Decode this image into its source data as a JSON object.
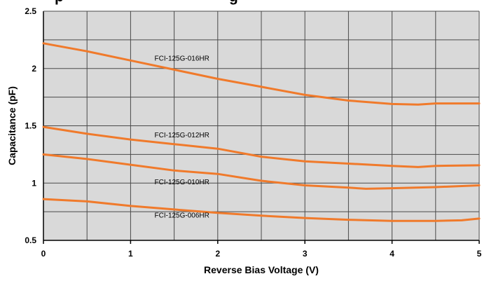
{
  "chart_data": {
    "type": "line",
    "title_fragment": "...p... ...g...",
    "xlabel": "Reverse Bias Voltage (V)",
    "ylabel": "Capacitance (pF)",
    "xlim": [
      0,
      5
    ],
    "ylim": [
      0.5,
      2.5
    ],
    "x_major_ticks": [
      0,
      1,
      2,
      3,
      4,
      5
    ],
    "x_tick_labels": [
      "0",
      "1",
      "2",
      "3",
      "4",
      "5"
    ],
    "x_minor_ticks": [
      0.5,
      1.5,
      2.5,
      3.5,
      4.5
    ],
    "y_major_ticks": [
      0.5,
      1,
      1.5,
      2,
      2.5
    ],
    "y_tick_labels": [
      "0.5",
      "1",
      "1.5",
      "2",
      "2.5"
    ],
    "y_minor_ticks": [
      0.75,
      1.25,
      1.75,
      2.25
    ],
    "grid": true,
    "line_color": "#f07a2b",
    "background_color": "#d9d9d9",
    "series": [
      {
        "name": "FCI-125G-016HR",
        "label_at": [
          1.25,
          2.07
        ],
        "x": [
          0,
          0.5,
          1,
          1.5,
          2,
          2.5,
          3,
          3.5,
          4,
          4.3,
          4.5,
          5
        ],
        "values": [
          2.22,
          2.15,
          2.07,
          1.99,
          1.91,
          1.84,
          1.77,
          1.72,
          1.69,
          1.685,
          1.695,
          1.695
        ]
      },
      {
        "name": "FCI-125G-012HR",
        "label_at": [
          1.25,
          1.4
        ],
        "x": [
          0,
          0.5,
          1,
          1.5,
          2,
          2.5,
          3,
          3.5,
          4,
          4.3,
          4.5,
          5
        ],
        "values": [
          1.49,
          1.43,
          1.38,
          1.34,
          1.3,
          1.23,
          1.19,
          1.17,
          1.15,
          1.14,
          1.15,
          1.155
        ]
      },
      {
        "name": "FCI-125G-010HR",
        "label_at": [
          1.25,
          0.99
        ],
        "x": [
          0,
          0.5,
          1,
          1.5,
          2,
          2.5,
          3,
          3.5,
          3.7,
          4,
          4.5,
          5
        ],
        "values": [
          1.25,
          1.21,
          1.16,
          1.11,
          1.08,
          1.02,
          0.98,
          0.96,
          0.95,
          0.955,
          0.965,
          0.98
        ]
      },
      {
        "name": "FCI-125G-006HR",
        "label_at": [
          1.25,
          0.7
        ],
        "x": [
          0,
          0.5,
          1,
          1.5,
          2,
          2.5,
          3,
          3.5,
          4,
          4.5,
          4.8,
          5
        ],
        "values": [
          0.86,
          0.84,
          0.8,
          0.77,
          0.74,
          0.715,
          0.695,
          0.68,
          0.67,
          0.67,
          0.675,
          0.69
        ]
      }
    ]
  }
}
